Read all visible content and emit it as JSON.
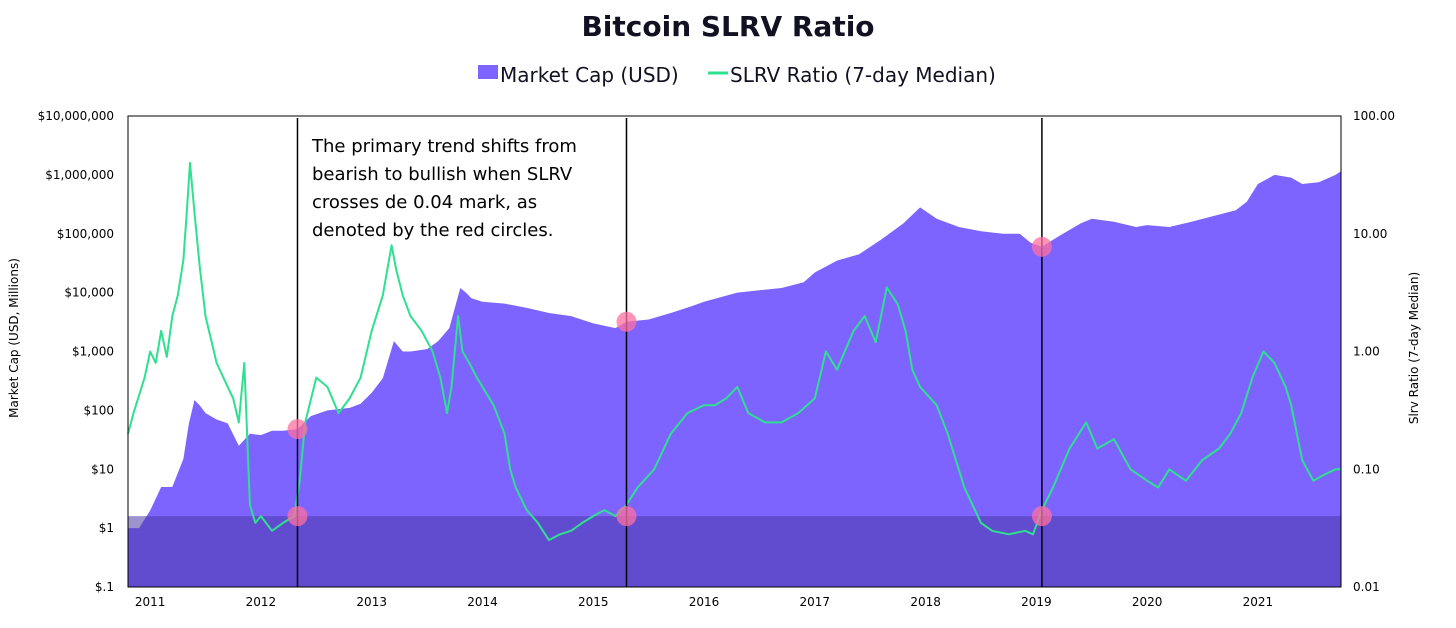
{
  "chart_data": {
    "type": "area",
    "title": "Bitcoin SLRV Ratio",
    "legend": [
      {
        "label": "Market Cap (USD)",
        "color": "#7d63ff",
        "marker": "square"
      },
      {
        "label": "SLRV Ratio (7-day Median)",
        "color": "#2ee08f",
        "marker": "line"
      }
    ],
    "legend_position": "top-center",
    "left_axis": {
      "label": "Market Cap (USD, Millions)",
      "scale": "log",
      "range": [
        0.1,
        10000000
      ],
      "ticks": [
        "$.1",
        "$1",
        "$10",
        "$100",
        "$1,000",
        "$10,000",
        "$100,000",
        "$1,000,000",
        "$10,000,000"
      ]
    },
    "right_axis": {
      "label": "Slrv Ratio (7-day Median)",
      "scale": "log",
      "range": [
        0.01,
        100
      ],
      "ticks": [
        "0.01",
        "0.10",
        "1.00",
        "10.00",
        "100.00"
      ]
    },
    "x_axis": {
      "range": [
        2010.8,
        2021.75
      ],
      "ticks": [
        "2011",
        "2012",
        "2013",
        "2014",
        "2015",
        "2016",
        "2017",
        "2018",
        "2019",
        "2020",
        "2021"
      ]
    },
    "threshold": {
      "value": 0.04,
      "description": "SLRV 0.04 band"
    },
    "vertical_lines": [
      2012.33,
      2015.3,
      2019.05
    ],
    "annotation": [
      "The primary trend shifts from",
      "bearish to bullish when SLRV",
      "crosses de 0.04 mark, as",
      "denoted by the red circles."
    ],
    "series": [
      {
        "name": "Market Cap (USD)",
        "axis": "left",
        "color": "#7d63ff",
        "x": [
          2010.8,
          2010.9,
          2011.0,
          2011.1,
          2011.2,
          2011.3,
          2011.35,
          2011.4,
          2011.45,
          2011.5,
          2011.6,
          2011.7,
          2011.8,
          2011.9,
          2012.0,
          2012.1,
          2012.2,
          2012.33,
          2012.45,
          2012.6,
          2012.8,
          2012.9,
          2013.0,
          2013.1,
          2013.2,
          2013.28,
          2013.35,
          2013.5,
          2013.6,
          2013.7,
          2013.8,
          2013.85,
          2013.9,
          2014.0,
          2014.2,
          2014.4,
          2014.6,
          2014.8,
          2015.0,
          2015.2,
          2015.3,
          2015.5,
          2015.7,
          2015.9,
          2016.0,
          2016.3,
          2016.5,
          2016.7,
          2016.9,
          2017.0,
          2017.2,
          2017.4,
          2017.6,
          2017.8,
          2017.95,
          2018.1,
          2018.3,
          2018.5,
          2018.7,
          2018.85,
          2018.95,
          2019.05,
          2019.2,
          2019.4,
          2019.5,
          2019.7,
          2019.9,
          2020.0,
          2020.2,
          2020.4,
          2020.6,
          2020.8,
          2020.9,
          2021.0,
          2021.15,
          2021.3,
          2021.4,
          2021.55,
          2021.7,
          2021.75
        ],
        "values": [
          1,
          1,
          2,
          5,
          5,
          15,
          60,
          150,
          120,
          90,
          70,
          60,
          25,
          40,
          38,
          45,
          45,
          48,
          80,
          100,
          110,
          130,
          200,
          350,
          1500,
          1000,
          1000,
          1100,
          1500,
          2500,
          12000,
          10000,
          8000,
          7000,
          6500,
          5500,
          4500,
          4000,
          3000,
          2500,
          3200,
          3500,
          4500,
          6000,
          7000,
          10000,
          11000,
          12000,
          15000,
          22000,
          35000,
          45000,
          80000,
          150000,
          280000,
          180000,
          130000,
          110000,
          100000,
          100000,
          70000,
          60000,
          90000,
          150000,
          180000,
          160000,
          130000,
          140000,
          130000,
          160000,
          200000,
          250000,
          350000,
          700000,
          1000000,
          900000,
          700000,
          750000,
          1000000,
          1150000
        ]
      },
      {
        "name": "SLRV Ratio (7-day Median)",
        "axis": "right",
        "color": "#2ee08f",
        "x": [
          2010.8,
          2010.85,
          2010.95,
          2011.0,
          2011.05,
          2011.1,
          2011.15,
          2011.2,
          2011.25,
          2011.3,
          2011.33,
          2011.36,
          2011.4,
          2011.45,
          2011.5,
          2011.6,
          2011.7,
          2011.75,
          2011.8,
          2011.85,
          2011.9,
          2011.95,
          2012.0,
          2012.1,
          2012.2,
          2012.3,
          2012.35,
          2012.4,
          2012.5,
          2012.6,
          2012.7,
          2012.8,
          2012.9,
          2013.0,
          2013.1,
          2013.18,
          2013.22,
          2013.28,
          2013.35,
          2013.45,
          2013.55,
          2013.62,
          2013.68,
          2013.72,
          2013.78,
          2013.82,
          2013.88,
          2013.95,
          2014.0,
          2014.1,
          2014.2,
          2014.25,
          2014.3,
          2014.4,
          2014.5,
          2014.6,
          2014.7,
          2014.8,
          2014.9,
          2015.0,
          2015.1,
          2015.2,
          2015.3,
          2015.4,
          2015.55,
          2015.7,
          2015.85,
          2016.0,
          2016.1,
          2016.2,
          2016.3,
          2016.4,
          2016.55,
          2016.7,
          2016.85,
          2017.0,
          2017.1,
          2017.2,
          2017.35,
          2017.45,
          2017.55,
          2017.65,
          2017.75,
          2017.82,
          2017.88,
          2017.95,
          2018.1,
          2018.2,
          2018.35,
          2018.5,
          2018.6,
          2018.75,
          2018.9,
          2018.97,
          2019.05,
          2019.15,
          2019.3,
          2019.45,
          2019.55,
          2019.7,
          2019.85,
          2020.0,
          2020.1,
          2020.2,
          2020.35,
          2020.5,
          2020.65,
          2020.75,
          2020.85,
          2020.95,
          2021.05,
          2021.15,
          2021.25,
          2021.3,
          2021.4,
          2021.5,
          2021.6,
          2021.7,
          2021.75
        ],
        "values": [
          0.2,
          0.3,
          0.6,
          1.0,
          0.8,
          1.5,
          0.9,
          2.0,
          3.0,
          6.0,
          15.0,
          40.0,
          15.0,
          5.0,
          2.0,
          0.8,
          0.5,
          0.4,
          0.25,
          0.8,
          0.05,
          0.035,
          0.04,
          0.03,
          0.035,
          0.04,
          0.08,
          0.25,
          0.6,
          0.5,
          0.3,
          0.4,
          0.6,
          1.5,
          3.0,
          8.0,
          5.0,
          3.0,
          2.0,
          1.5,
          1.0,
          0.6,
          0.3,
          0.5,
          2.0,
          1.0,
          0.8,
          0.6,
          0.5,
          0.35,
          0.2,
          0.1,
          0.07,
          0.045,
          0.035,
          0.025,
          0.028,
          0.03,
          0.035,
          0.04,
          0.045,
          0.04,
          0.05,
          0.07,
          0.1,
          0.2,
          0.3,
          0.35,
          0.35,
          0.4,
          0.5,
          0.3,
          0.25,
          0.25,
          0.3,
          0.4,
          1.0,
          0.7,
          1.5,
          2.0,
          1.2,
          3.5,
          2.5,
          1.5,
          0.7,
          0.5,
          0.35,
          0.2,
          0.07,
          0.035,
          0.03,
          0.028,
          0.03,
          0.028,
          0.045,
          0.07,
          0.15,
          0.25,
          0.15,
          0.18,
          0.1,
          0.08,
          0.07,
          0.1,
          0.08,
          0.12,
          0.15,
          0.2,
          0.3,
          0.6,
          1.0,
          0.8,
          0.5,
          0.35,
          0.12,
          0.08,
          0.09,
          0.1,
          0.1
        ]
      }
    ]
  }
}
